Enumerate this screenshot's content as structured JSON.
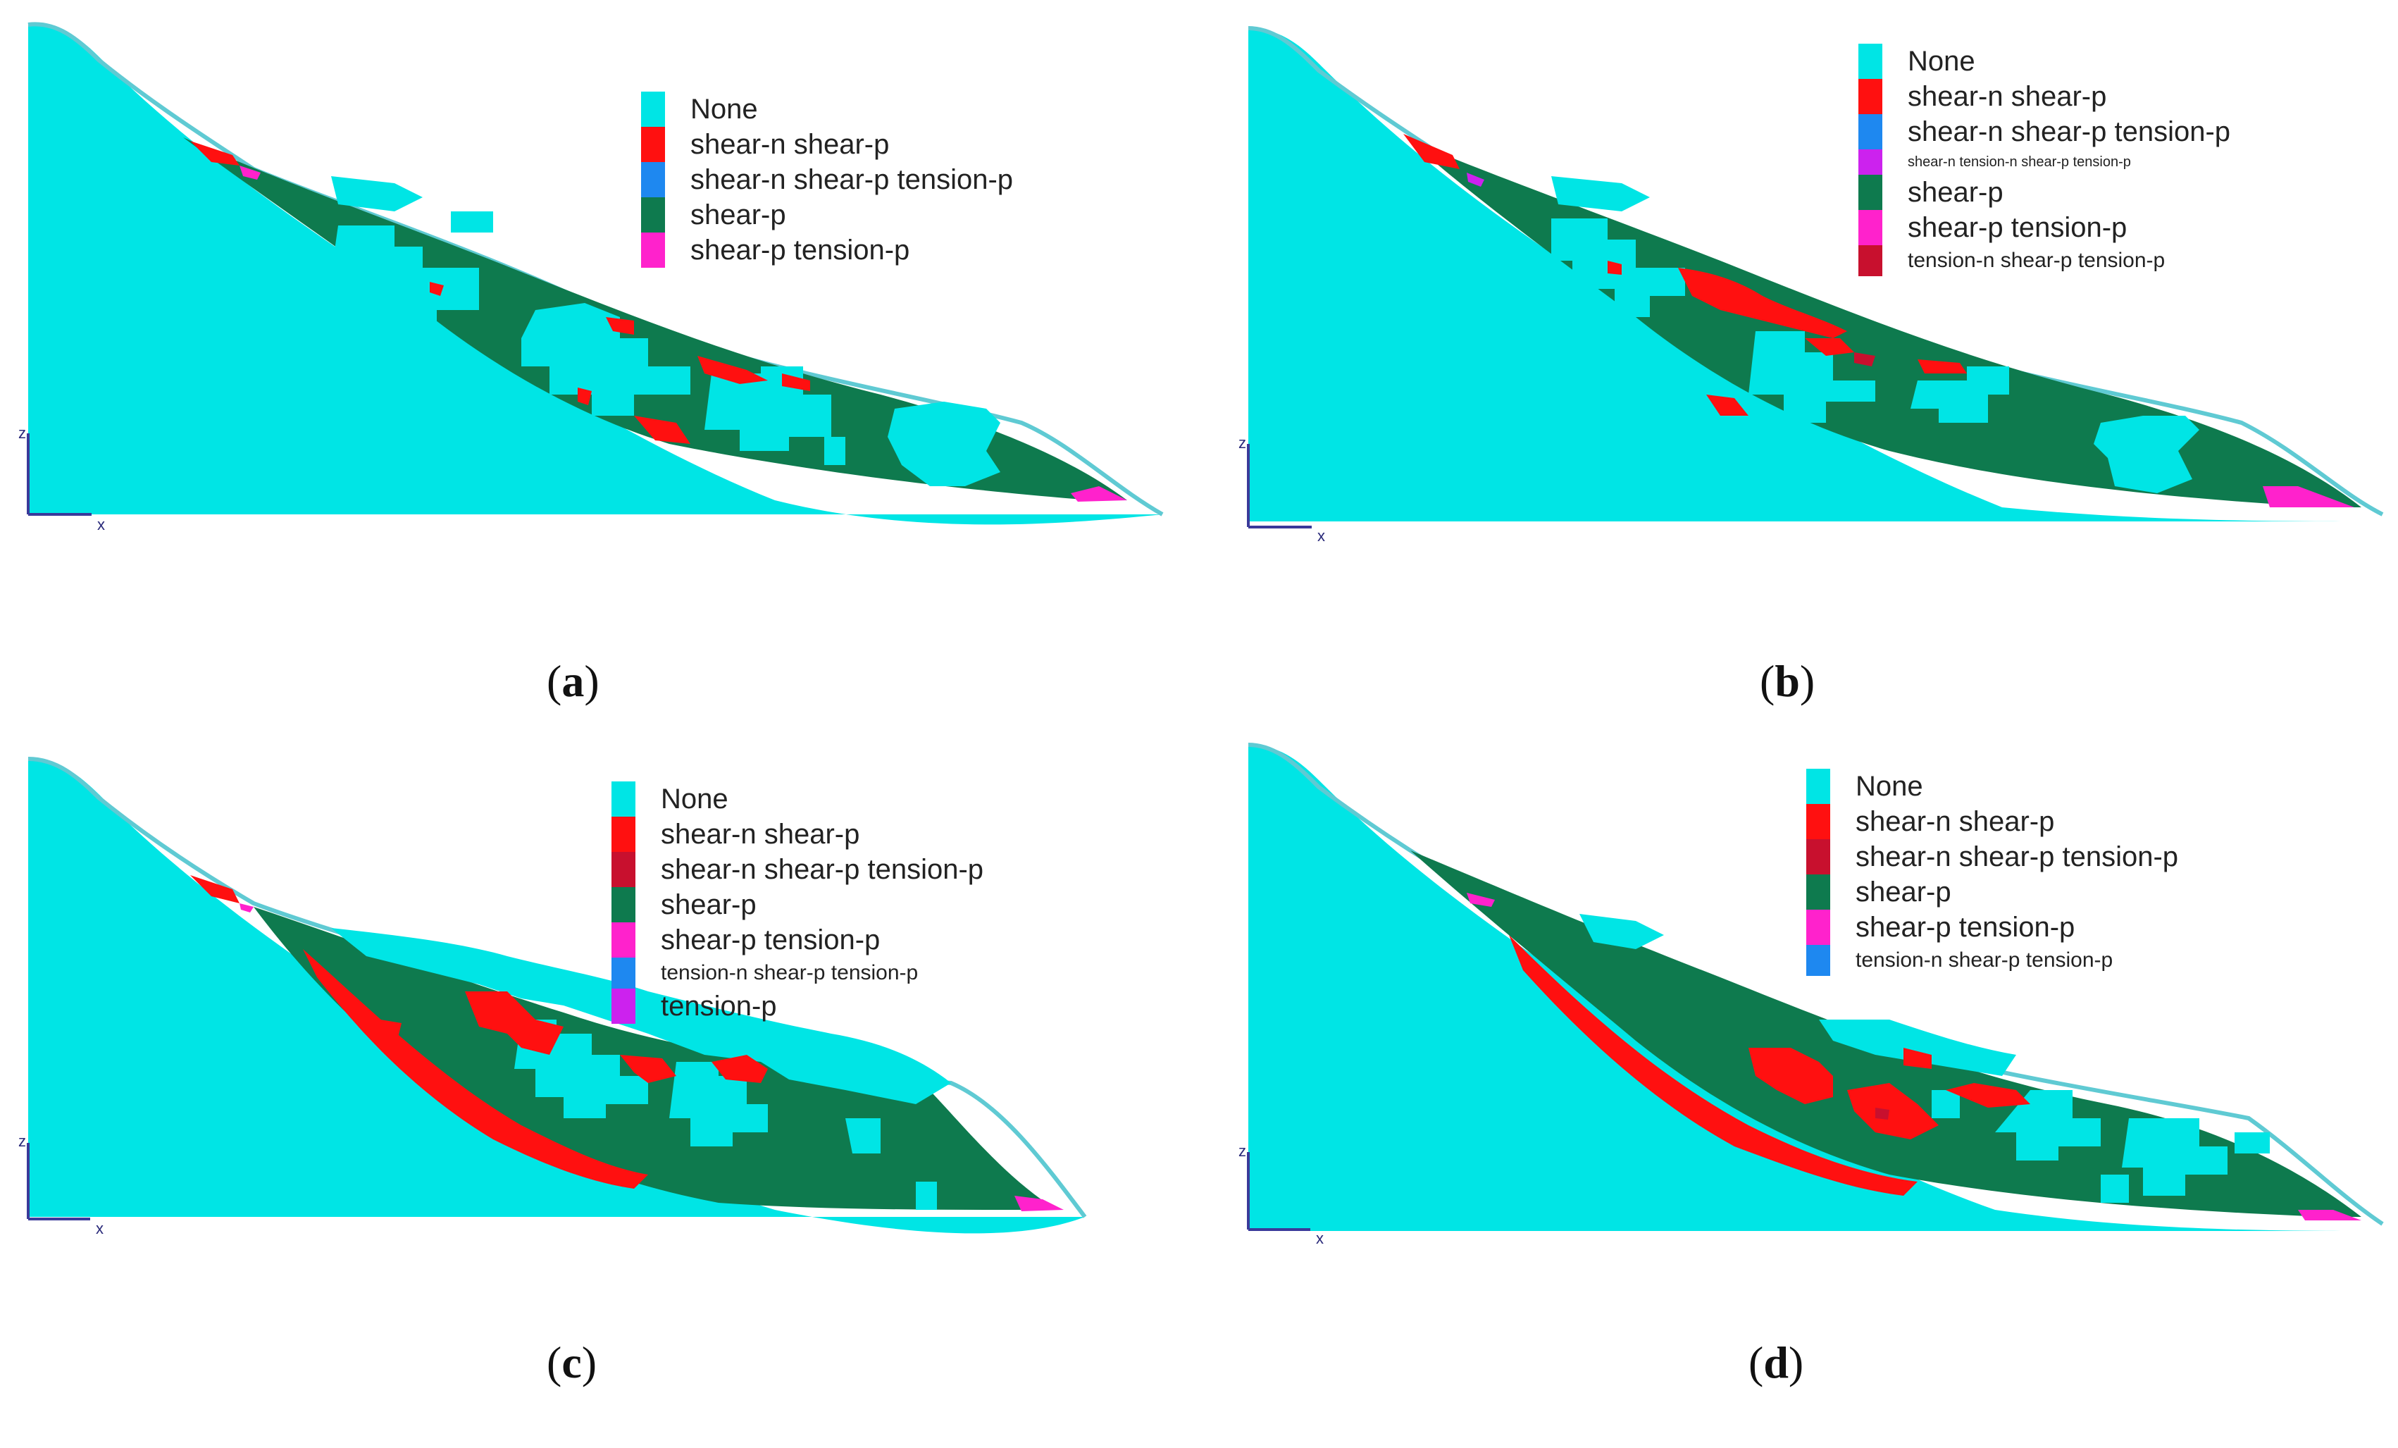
{
  "colors": {
    "none": "#00E5E5",
    "shear_n_shear_p": "#FF1010",
    "shear_n_shear_p_tension_p_blue": "#1E88F0",
    "shear_n_shear_p_tension_p_dark": "#C8102E",
    "shear_p": "#0E7A4E",
    "shear_p_tension_p": "#FF22CC",
    "shear_n_tension_n_shear_p_tension_p": "#CC22EE",
    "tension_n_shear_p_tension_p_dark": "#C8102E",
    "tension_n_shear_p_tension_p_blue": "#1E88F0",
    "tension_p": "#CC22EE"
  },
  "axes": {
    "z": "z",
    "x": "x"
  },
  "panels": [
    {
      "caption": "a",
      "legend": [
        {
          "label": "None",
          "color": "#00E5E5",
          "size": "large"
        },
        {
          "label": "shear-n shear-p",
          "color": "#FF1010",
          "size": "large"
        },
        {
          "label": "shear-n shear-p tension-p",
          "color": "#1E88F0",
          "size": "large"
        },
        {
          "label": "shear-p",
          "color": "#0E7A4E",
          "size": "large"
        },
        {
          "label": "shear-p tension-p",
          "color": "#FF22CC",
          "size": "large"
        }
      ]
    },
    {
      "caption": "b",
      "legend": [
        {
          "label": "None",
          "color": "#00E5E5",
          "size": "large"
        },
        {
          "label": "shear-n shear-p",
          "color": "#FF1010",
          "size": "large"
        },
        {
          "label": "shear-n shear-p tension-p",
          "color": "#1E88F0",
          "size": "large"
        },
        {
          "label": "shear-n tension-n shear-p tension-p",
          "color": "#CC22EE",
          "size": "small"
        },
        {
          "label": "shear-p",
          "color": "#0E7A4E",
          "size": "large"
        },
        {
          "label": "shear-p tension-p",
          "color": "#FF22CC",
          "size": "large"
        },
        {
          "label": "tension-n shear-p tension-p",
          "color": "#C8102E",
          "size": "medium"
        }
      ]
    },
    {
      "caption": "c",
      "legend": [
        {
          "label": "None",
          "color": "#00E5E5",
          "size": "large"
        },
        {
          "label": "shear-n shear-p",
          "color": "#FF1010",
          "size": "large"
        },
        {
          "label": "shear-n shear-p tension-p",
          "color": "#C8102E",
          "size": "large"
        },
        {
          "label": "shear-p",
          "color": "#0E7A4E",
          "size": "large"
        },
        {
          "label": "shear-p tension-p",
          "color": "#FF22CC",
          "size": "large"
        },
        {
          "label": "tension-n shear-p tension-p",
          "color": "#1E88F0",
          "size": "medium"
        },
        {
          "label": "tension-p",
          "color": "#CC22EE",
          "size": "large"
        }
      ]
    },
    {
      "caption": "d",
      "legend": [
        {
          "label": "None",
          "color": "#00E5E5",
          "size": "large"
        },
        {
          "label": "shear-n shear-p",
          "color": "#FF1010",
          "size": "large"
        },
        {
          "label": "shear-n shear-p tension-p",
          "color": "#C8102E",
          "size": "large"
        },
        {
          "label": "shear-p",
          "color": "#0E7A4E",
          "size": "large"
        },
        {
          "label": "shear-p tension-p",
          "color": "#FF22CC",
          "size": "large"
        },
        {
          "label": "tension-n shear-p tension-p",
          "color": "#1E88F0",
          "size": "medium"
        }
      ]
    }
  ]
}
